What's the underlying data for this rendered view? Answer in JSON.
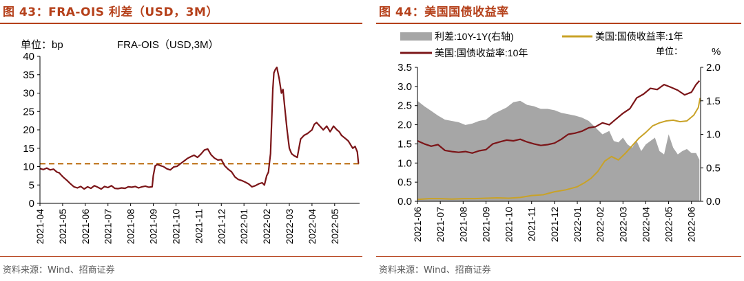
{
  "left": {
    "title": "图 43：FRA-OIS 利差（USD，3M）",
    "source": "资料来源：Wind、招商证券",
    "chart_data": {
      "type": "line",
      "title": "FRA-OIS（USD,3M）",
      "unit_label": "单位：bp",
      "yticks": [
        "0",
        "5",
        "10",
        "15",
        "20",
        "25",
        "30",
        "35",
        "40"
      ],
      "ylim": [
        0,
        40
      ],
      "x_tick_labels": [
        "2021-04",
        "2021-05",
        "2021-06",
        "2021-07",
        "2021-08",
        "2021-09",
        "2021-10",
        "2021-11",
        "2021-12",
        "2022-01",
        "2022-02",
        "2022-03",
        "2022-04",
        "2022-05"
      ],
      "xlim": [
        0,
        14.1
      ],
      "reference_line_value": 10.8,
      "colors": {
        "series": "#7b1518",
        "reference": "#c0761f"
      },
      "series": [
        {
          "x": [
            0,
            0.15,
            0.3,
            0.45,
            0.6,
            0.75,
            0.85,
            0.95,
            1.05,
            1.2,
            1.35,
            1.5,
            1.65,
            1.8,
            1.95,
            2.1,
            2.25,
            2.4,
            2.55,
            2.7,
            2.85,
            3.0,
            3.15,
            3.3,
            3.45,
            3.6,
            3.75,
            3.9,
            4.05,
            4.2,
            4.35,
            4.5,
            4.65,
            4.8,
            4.95,
            5.0,
            5.08,
            5.18,
            5.3,
            5.45,
            5.6,
            5.75,
            5.9,
            6.05,
            6.2,
            6.35,
            6.5,
            6.65,
            6.8,
            6.95,
            7.1,
            7.25,
            7.4,
            7.55,
            7.7,
            7.85,
            8.0,
            8.15,
            8.3,
            8.45,
            8.6,
            8.75,
            8.9,
            9.05,
            9.2,
            9.35,
            9.5,
            9.65,
            9.8,
            9.9,
            10.0,
            10.08,
            10.12,
            10.17,
            10.22,
            10.27,
            10.32,
            10.38,
            10.45,
            10.55,
            10.65,
            10.72,
            10.8,
            10.9,
            11.0,
            11.1,
            11.2,
            11.35,
            11.5,
            11.65,
            11.8,
            11.9,
            12.0,
            12.1,
            12.2,
            12.35,
            12.5,
            12.65,
            12.8,
            12.95,
            13.1,
            13.2,
            13.3,
            13.4,
            13.5,
            13.6,
            13.7,
            13.8,
            13.9,
            14.0,
            14.05
          ],
          "y": [
            9.5,
            9.2,
            9.6,
            9.1,
            9.3,
            8.5,
            8.3,
            7.6,
            7,
            6.2,
            5.3,
            4.5,
            4.2,
            4.6,
            3.9,
            4.5,
            4.1,
            4.8,
            4.4,
            3.9,
            4.6,
            4.3,
            4.8,
            4.1,
            4.0,
            4.2,
            4.1,
            4.5,
            4.4,
            4.6,
            4.2,
            4.5,
            4.7,
            4.4,
            4.5,
            7.5,
            10.2,
            10.6,
            10.3,
            10.0,
            9.4,
            9.1,
            9.9,
            10.1,
            10.8,
            11.5,
            12.2,
            12.7,
            13.1,
            12.5,
            13.4,
            14.5,
            14.8,
            13.2,
            12.3,
            11.8,
            11.9,
            10.2,
            9.3,
            8.6,
            7.2,
            6.5,
            6.2,
            5.8,
            5.3,
            4.5,
            4.8,
            5.3,
            5.6,
            5.0,
            7.5,
            8.5,
            10.8,
            13.5,
            22,
            31,
            35.5,
            36.4,
            37.0,
            34,
            30,
            31,
            26,
            20,
            15,
            13.5,
            13,
            12.5,
            17.5,
            18.5,
            19,
            19.5,
            20,
            21.5,
            22,
            21,
            20,
            21,
            19.5,
            21,
            20,
            19.5,
            18.5,
            18.0,
            17.5,
            17,
            16,
            15,
            15.5,
            14,
            10.8
          ]
        }
      ]
    }
  },
  "right": {
    "title": "图 44：美国国债收益率",
    "source": "资料来源：Wind、招商证券",
    "chart_data": {
      "type": "line",
      "legend": [
        "利差:10Y-1Y(右轴)",
        "美国:国债收益率:1年",
        "美国:国债收益率:10年"
      ],
      "unit_label": "单位：",
      "right_unit": "%",
      "yleft_ticks": [
        "0.0",
        "0.5",
        "1.0",
        "1.5",
        "2.0",
        "2.5",
        "3.0",
        "3.5"
      ],
      "ylim_left": [
        0,
        3.5
      ],
      "yright_ticks": [
        "0.0",
        "0.5",
        "1.0",
        "1.5",
        "2.0"
      ],
      "ylim_right": [
        0,
        2.0
      ],
      "x_tick_labels": [
        "2021-06",
        "2021-07",
        "2021-08",
        "2021-09",
        "2021-10",
        "2021-11",
        "2021-12",
        "2022-01",
        "2022-02",
        "2022-03",
        "2022-04",
        "2022-05",
        "2022-06"
      ],
      "xlim": [
        0,
        12.4
      ],
      "colors": {
        "area": "#a6a6a6",
        "y1": "#c9a227",
        "y10": "#7b1518"
      },
      "series": [
        {
          "name": "利差:10Y-1Y(右轴)",
          "axis": "right",
          "x": [
            0,
            0.3,
            0.6,
            0.9,
            1.2,
            1.5,
            1.8,
            2.1,
            2.4,
            2.7,
            3.0,
            3.3,
            3.6,
            3.9,
            4.2,
            4.5,
            4.8,
            5.1,
            5.4,
            5.7,
            6.0,
            6.3,
            6.6,
            6.9,
            7.2,
            7.5,
            7.8,
            8.1,
            8.4,
            8.6,
            8.8,
            9.0,
            9.2,
            9.4,
            9.6,
            9.8,
            10.0,
            10.2,
            10.4,
            10.6,
            10.8,
            11.0,
            11.2,
            11.4,
            11.6,
            11.8,
            12.0,
            12.2,
            12.35
          ],
          "y": [
            1.5,
            1.42,
            1.35,
            1.28,
            1.22,
            1.2,
            1.18,
            1.14,
            1.16,
            1.2,
            1.22,
            1.3,
            1.35,
            1.4,
            1.48,
            1.5,
            1.44,
            1.42,
            1.38,
            1.38,
            1.36,
            1.32,
            1.3,
            1.28,
            1.25,
            1.2,
            1.1,
            1.0,
            1.05,
            0.9,
            0.88,
            0.95,
            0.85,
            0.8,
            0.9,
            0.75,
            0.85,
            0.9,
            0.95,
            0.75,
            0.7,
            1.0,
            0.8,
            0.7,
            0.75,
            0.78,
            0.72,
            0.72,
            0.62
          ]
        },
        {
          "name": "美国:国债收益率:1年",
          "axis": "left",
          "x": [
            0,
            0.5,
            1,
            1.5,
            2,
            2.5,
            3,
            3.5,
            4,
            4.5,
            5,
            5.5,
            6,
            6.5,
            7,
            7.3,
            7.6,
            7.9,
            8.2,
            8.5,
            8.8,
            9.1,
            9.4,
            9.7,
            10.0,
            10.3,
            10.6,
            10.9,
            11.2,
            11.5,
            11.8,
            12.1,
            12.3,
            12.38
          ],
          "y": [
            0.05,
            0.07,
            0.07,
            0.06,
            0.07,
            0.07,
            0.08,
            0.09,
            0.08,
            0.1,
            0.15,
            0.17,
            0.25,
            0.3,
            0.38,
            0.48,
            0.6,
            0.78,
            1.05,
            1.17,
            1.08,
            1.25,
            1.45,
            1.65,
            1.8,
            1.97,
            2.05,
            2.1,
            2.12,
            2.08,
            2.1,
            2.25,
            2.45,
            2.7
          ]
        },
        {
          "name": "美国:国债收益率:10年",
          "axis": "left",
          "x": [
            0,
            0.3,
            0.6,
            0.9,
            1.2,
            1.5,
            1.8,
            2.1,
            2.4,
            2.7,
            3.0,
            3.3,
            3.6,
            3.9,
            4.2,
            4.5,
            4.8,
            5.1,
            5.4,
            5.7,
            6.0,
            6.3,
            6.6,
            6.9,
            7.2,
            7.5,
            7.8,
            8.1,
            8.4,
            8.7,
            9.0,
            9.3,
            9.6,
            9.9,
            10.2,
            10.5,
            10.8,
            11.1,
            11.4,
            11.7,
            12.0,
            12.2,
            12.35
          ],
          "y": [
            1.58,
            1.5,
            1.44,
            1.48,
            1.33,
            1.3,
            1.28,
            1.3,
            1.26,
            1.32,
            1.35,
            1.5,
            1.55,
            1.6,
            1.58,
            1.62,
            1.55,
            1.5,
            1.46,
            1.48,
            1.52,
            1.62,
            1.75,
            1.78,
            1.83,
            1.92,
            1.95,
            2.05,
            2.0,
            2.15,
            2.3,
            2.42,
            2.7,
            2.8,
            2.95,
            2.92,
            3.05,
            2.98,
            2.9,
            2.78,
            2.85,
            3.05,
            3.15
          ]
        }
      ]
    }
  }
}
